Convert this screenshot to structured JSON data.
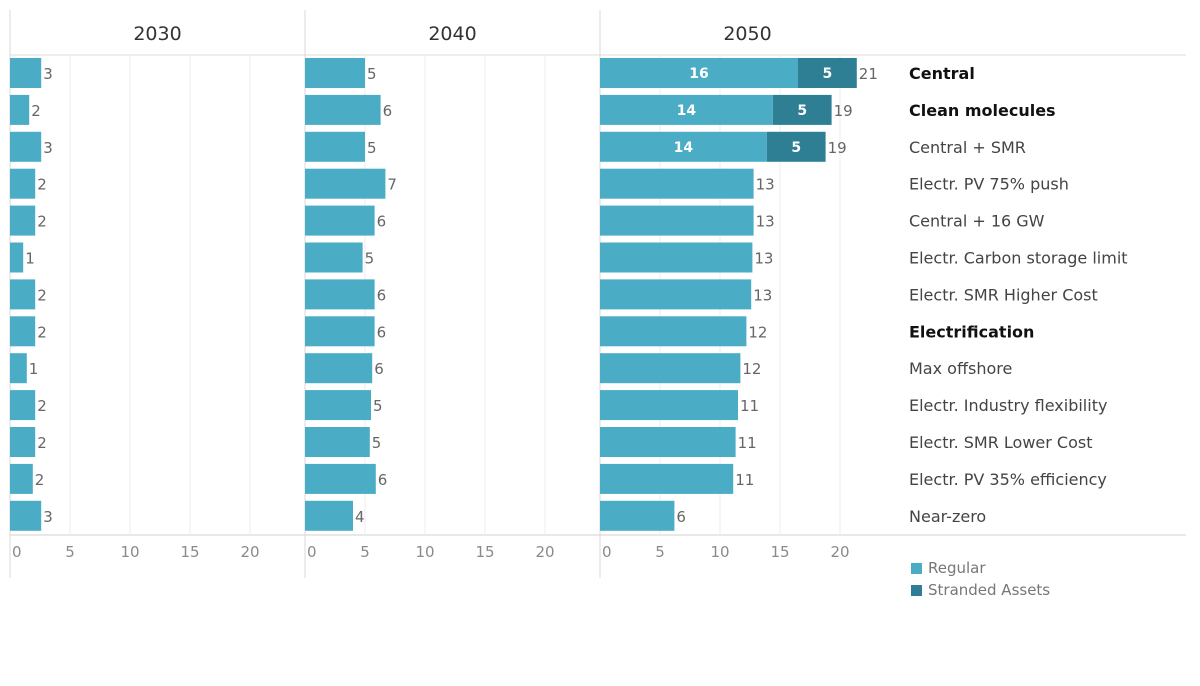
{
  "chart_data": {
    "type": "bar",
    "orientation": "horizontal",
    "stacked": true,
    "panels": [
      "2030",
      "2040",
      "2050"
    ],
    "categories": [
      {
        "label": "Central",
        "bold": true
      },
      {
        "label": "Clean molecules",
        "bold": true
      },
      {
        "label": "Central + SMR",
        "bold": false
      },
      {
        "label": "Electr. PV 75% push",
        "bold": false
      },
      {
        "label": "Central + 16 GW",
        "bold": false
      },
      {
        "label": "Electr. Carbon storage limit",
        "bold": false
      },
      {
        "label": "Electr. SMR Higher Cost",
        "bold": false
      },
      {
        "label": "Electrification",
        "bold": true
      },
      {
        "label": "Max offshore",
        "bold": false
      },
      {
        "label": "Electr. Industry flexibility",
        "bold": false
      },
      {
        "label": "Electr. SMR Lower Cost",
        "bold": false
      },
      {
        "label": "Electr. PV 35% efficiency",
        "bold": false
      },
      {
        "label": "Near-zero",
        "bold": false
      }
    ],
    "series": [
      {
        "name": "Regular",
        "color": "#4bacc6",
        "values": {
          "2030": [
            2.6,
            1.6,
            2.6,
            2.1,
            2.1,
            1.1,
            2.1,
            2.1,
            1.4,
            2.1,
            2.1,
            1.9,
            2.6
          ],
          "2040": [
            5.0,
            6.3,
            5.0,
            6.7,
            5.8,
            4.8,
            5.8,
            5.8,
            5.6,
            5.5,
            5.4,
            5.9,
            4.0
          ],
          "2050": [
            16.5,
            14.4,
            13.9,
            12.8,
            12.8,
            12.7,
            12.6,
            12.2,
            11.7,
            11.5,
            11.3,
            11.1,
            6.2
          ]
        },
        "labels": {
          "2050": [
            "16",
            "14",
            "14",
            "",
            "",
            "",
            "",
            "",
            "",
            "",
            "",
            "",
            ""
          ]
        }
      },
      {
        "name": "Stranded Assets",
        "color": "#2e7f94",
        "values": {
          "2030": [
            0,
            0,
            0,
            0,
            0,
            0,
            0,
            0,
            0,
            0,
            0,
            0,
            0
          ],
          "2040": [
            0,
            0,
            0,
            0,
            0,
            0,
            0,
            0,
            0,
            0,
            0,
            0,
            0
          ],
          "2050": [
            4.9,
            4.9,
            4.9,
            0,
            0,
            0,
            0,
            0,
            0,
            0,
            0,
            0,
            0
          ]
        },
        "labels": {
          "2050": [
            "5",
            "5",
            "5",
            "",
            "",
            "",
            "",
            "",
            "",
            "",
            "",
            "",
            ""
          ]
        }
      }
    ],
    "totals": {
      "2030": [
        "3",
        "2",
        "3",
        "2",
        "2",
        "1",
        "2",
        "2",
        "1",
        "2",
        "2",
        "2",
        "3"
      ],
      "2040": [
        "5",
        "6",
        "5",
        "7",
        "6",
        "5",
        "6",
        "6",
        "6",
        "5",
        "5",
        "6",
        "4"
      ],
      "2050": [
        "21",
        "19",
        "19",
        "13",
        "13",
        "13",
        "13",
        "12",
        "12",
        "11",
        "11",
        "11",
        "6"
      ]
    },
    "x_ticks": [
      0,
      5,
      10,
      15,
      20
    ],
    "xlim": [
      0,
      24.5
    ],
    "grid": true,
    "legend": {
      "position": "bottom-right",
      "entries": [
        "Regular",
        "Stranded Assets"
      ]
    }
  }
}
